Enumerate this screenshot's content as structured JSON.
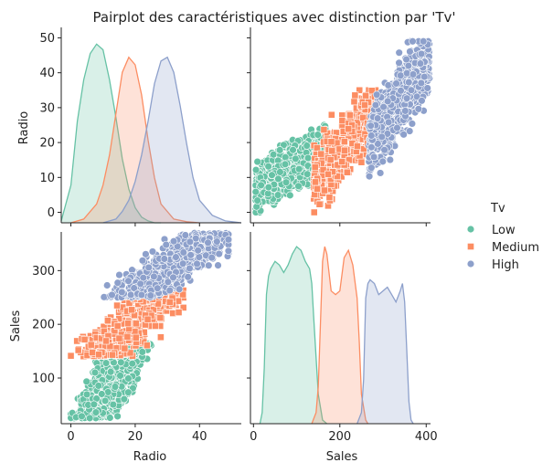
{
  "chart_data": {
    "type": "pairplot",
    "title": "Pairplot des caractéristiques avec distinction par 'Tv'",
    "variables": [
      "Radio",
      "Sales"
    ],
    "hue": "Tv",
    "legend": {
      "title": "Tv",
      "position": "right",
      "entries": [
        {
          "label": "Low",
          "color": "#66c2a5",
          "marker": "circle"
        },
        {
          "label": "Medium",
          "color": "#fc8d62",
          "marker": "square"
        },
        {
          "label": "High",
          "color": "#8da0cb",
          "marker": "circle"
        }
      ]
    },
    "axes": {
      "radio": {
        "label": "Radio",
        "range": [
          -3,
          53
        ],
        "ticks": [
          0,
          10,
          20,
          30,
          40,
          50
        ]
      },
      "radio_x_ticks": [
        0,
        20,
        40
      ],
      "sales": {
        "label": "Sales",
        "range": [
          15,
          372
        ],
        "ticks": [
          100,
          200,
          300
        ]
      },
      "sales_x": {
        "range": [
          -7,
          410
        ],
        "ticks": [
          0,
          200,
          400
        ]
      }
    },
    "panels": {
      "radio_kde": {
        "type": "area",
        "groups": {
          "Low": {
            "x": [
              -3,
              0,
              2,
              4,
              6,
              8,
              10,
              12,
              14,
              16,
              18,
              20,
              22,
              24,
              26,
              28
            ],
            "density": [
              0.5,
              10,
              27,
              38,
              45,
              47.5,
              46,
              38,
              28,
              17,
              9,
              4,
              1.5,
              0.5,
              0,
              0
            ]
          },
          "Medium": {
            "x": [
              0,
              4,
              8,
              10,
              12,
              14,
              16,
              18,
              20,
              22,
              24,
              26,
              28,
              32,
              36,
              40
            ],
            "density": [
              0,
              1,
              5,
              10,
              18,
              29,
              40,
              44,
              42,
              34,
              22,
              12,
              5,
              1,
              0.3,
              0
            ]
          },
          "High": {
            "x": [
              10,
              14,
              16,
              18,
              20,
              22,
              24,
              26,
              28,
              30,
              32,
              34,
              36,
              38,
              40,
              44,
              48,
              53
            ],
            "density": [
              0,
              1,
              3,
              6,
              11,
              18,
              27,
              37,
              43,
              44,
              40,
              31,
              21,
              12,
              6,
              2,
              0.5,
              0
            ]
          }
        }
      },
      "sales_kde": {
        "type": "area",
        "groups": {
          "Low": {
            "x": [
              15,
              20,
              25,
              30,
              35,
              40,
              50,
              60,
              70,
              80,
              90,
              100,
              110,
              120,
              130,
              135,
              140,
              150,
              160,
              170
            ],
            "density": [
              0,
              3,
              15,
              35,
              40,
              42,
              44,
              43,
              41,
              43,
              46,
              48,
              47,
              44,
              42,
              38,
              28,
              8,
              1,
              0
            ]
          },
          "Medium": {
            "x": [
              135,
              145,
              150,
              160,
              165,
              170,
              180,
              190,
              200,
              210,
              220,
              230,
              240,
              245,
              250,
              260,
              265
            ],
            "density": [
              0,
              3,
              10,
              44,
              48,
              46,
              36,
              35,
              36,
              45,
              47,
              43,
              34,
              22,
              8,
              1,
              0
            ]
          },
          "High": {
            "x": [
              240,
              250,
              255,
              260,
              265,
              270,
              280,
              290,
              300,
              310,
              320,
              330,
              340,
              345,
              350,
              355,
              360,
              365,
              370
            ],
            "density": [
              0,
              3,
              12,
              34,
              38,
              39,
              38,
              35,
              36,
              37,
              35,
              33,
              36,
              38,
              33,
              20,
              6,
              1,
              0
            ]
          }
        }
      },
      "radio_vs_sales_scatter": {
        "groups": {
          "Low": {
            "sales_range": [
              25,
              165
            ],
            "radio": {
              "min": 0,
              "max": 25,
              "slope": 0.09
            }
          },
          "Medium": {
            "sales_range": [
              140,
              265
            ],
            "radio": {
              "min": 0,
              "max": 35,
              "slope": 0.17
            }
          },
          "High": {
            "sales_range": [
              250,
              370
            ],
            "radio": {
              "min": 10,
              "max": 49,
              "slope": 0.2
            }
          }
        }
      }
    },
    "ylim": [
      0,
      50
    ],
    "grid": false
  }
}
